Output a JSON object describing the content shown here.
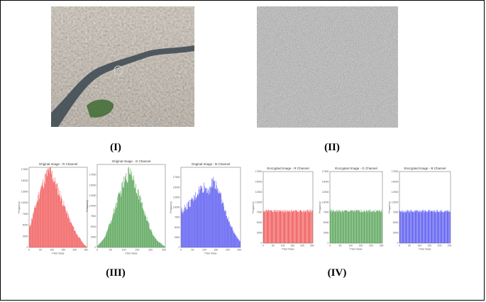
{
  "labels": {
    "panel_1": "(I)",
    "panel_2": "(II)",
    "panel_3": "(III)",
    "panel_4": "(IV)"
  },
  "images": {
    "original": "aerial-city-photo",
    "encrypted": "random-noise-image"
  },
  "chart_data": [
    {
      "type": "bar",
      "title": "Original Image - R Channel",
      "xlabel": "Pixel Value",
      "ylabel": "Frequency",
      "xticks": [
        "0",
        "50",
        "100",
        "150",
        "200",
        "250"
      ],
      "yticks": [
        "0",
        "2500",
        "5000",
        "7500",
        "10000",
        "12500",
        "15000",
        "17500"
      ],
      "xlim": [
        0,
        255
      ],
      "ylim": [
        0,
        18000
      ],
      "color": "#f05050",
      "envelope": [
        [
          0,
          4000
        ],
        [
          10,
          6000
        ],
        [
          30,
          9500
        ],
        [
          50,
          13000
        ],
        [
          70,
          15500
        ],
        [
          90,
          17500
        ],
        [
          100,
          16500
        ],
        [
          120,
          14000
        ],
        [
          150,
          10000
        ],
        [
          180,
          6000
        ],
        [
          210,
          3000
        ],
        [
          240,
          800
        ],
        [
          255,
          100
        ]
      ]
    },
    {
      "type": "bar",
      "title": "Original Image - G Channel",
      "xlabel": "Pixel Value",
      "ylabel": "Frequency",
      "xticks": [
        "0",
        "50",
        "100",
        "150",
        "200",
        "250"
      ],
      "yticks": [
        "0",
        "2500",
        "5000",
        "7500",
        "10000",
        "12500",
        "15000",
        "17500"
      ],
      "xlim": [
        0,
        255
      ],
      "ylim": [
        0,
        20000
      ],
      "color": "#50a050",
      "envelope": [
        [
          0,
          300
        ],
        [
          25,
          2000
        ],
        [
          50,
          6000
        ],
        [
          75,
          11000
        ],
        [
          100,
          15500
        ],
        [
          115,
          17500
        ],
        [
          125,
          19000
        ],
        [
          140,
          16000
        ],
        [
          160,
          12000
        ],
        [
          180,
          8000
        ],
        [
          200,
          4500
        ],
        [
          220,
          2000
        ],
        [
          240,
          900
        ],
        [
          255,
          200
        ]
      ]
    },
    {
      "type": "bar",
      "title": "Original Image - B Channel",
      "xlabel": "Pixel Value",
      "ylabel": "Frequency",
      "xticks": [
        "0",
        "50",
        "100",
        "150",
        "200",
        "250"
      ],
      "yticks": [
        "0",
        "2500",
        "5000",
        "7500",
        "10000",
        "12500",
        "15000",
        "17500"
      ],
      "xlim": [
        0,
        255
      ],
      "ylim": [
        0,
        20000
      ],
      "color": "#5050f0",
      "envelope": [
        [
          0,
          9000
        ],
        [
          20,
          10000
        ],
        [
          50,
          11500
        ],
        [
          80,
          14500
        ],
        [
          100,
          15000
        ],
        [
          120,
          14500
        ],
        [
          140,
          16500
        ],
        [
          150,
          16000
        ],
        [
          170,
          13000
        ],
        [
          190,
          9000
        ],
        [
          210,
          6000
        ],
        [
          230,
          3500
        ],
        [
          255,
          1500
        ]
      ]
    },
    {
      "type": "bar",
      "title": "Encrypted Image - R Channel",
      "xlabel": "Pixel Value",
      "ylabel": "Frequency",
      "xticks": [
        "0",
        "50",
        "100",
        "150",
        "200",
        "250"
      ],
      "yticks": [
        "0",
        "2500",
        "5000",
        "7500",
        "10000",
        "12500",
        "15000",
        "17500"
      ],
      "xlim": [
        0,
        255
      ],
      "ylim": [
        0,
        17500
      ],
      "color": "#f05050",
      "level": 7900
    },
    {
      "type": "bar",
      "title": "Encrypted Image - G Channel",
      "xlabel": "Pixel Value",
      "ylabel": "Frequency",
      "xticks": [
        "0",
        "50",
        "100",
        "150",
        "200",
        "250"
      ],
      "yticks": [
        "0",
        "2500",
        "5000",
        "7500",
        "10000",
        "12500",
        "15000",
        "17500"
      ],
      "xlim": [
        0,
        255
      ],
      "ylim": [
        0,
        17500
      ],
      "color": "#50a050",
      "level": 7900
    },
    {
      "type": "bar",
      "title": "Encrypted Image - B Channel",
      "xlabel": "Pixel Value",
      "ylabel": "Frequency",
      "xticks": [
        "0",
        "50",
        "100",
        "150",
        "200",
        "250"
      ],
      "yticks": [
        "0",
        "2500",
        "5000",
        "7500",
        "10000",
        "12500",
        "15000",
        "17500"
      ],
      "xlim": [
        0,
        255
      ],
      "ylim": [
        0,
        17500
      ],
      "color": "#5050f0",
      "level": 7900
    }
  ]
}
